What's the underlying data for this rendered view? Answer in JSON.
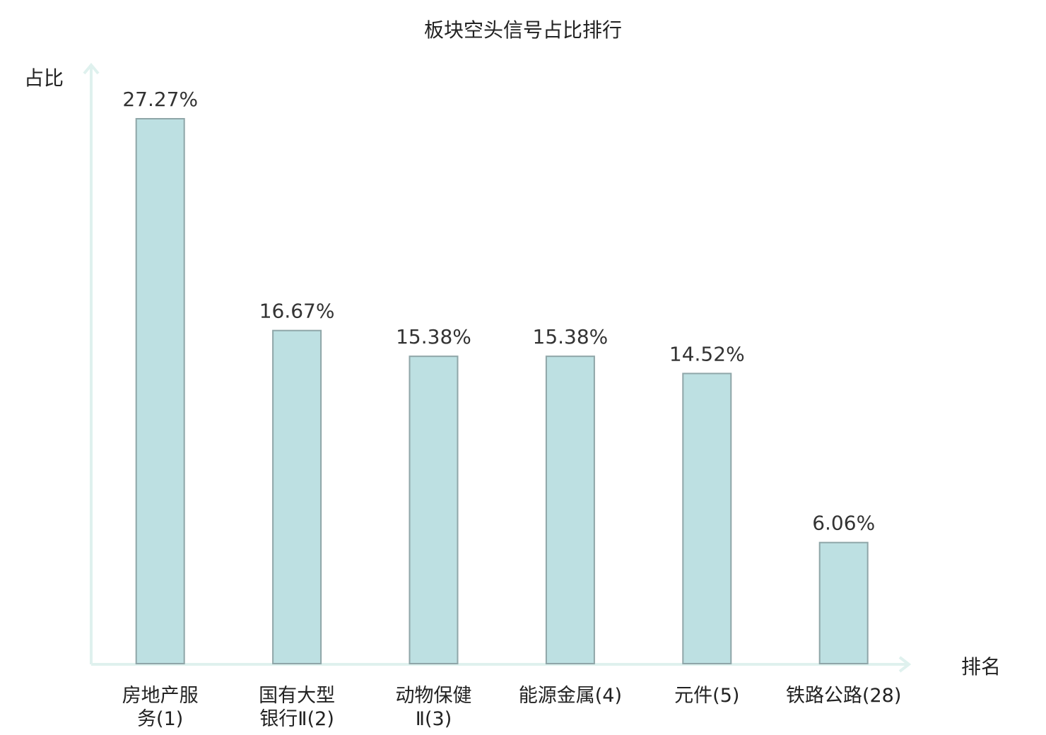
{
  "chart_data": {
    "type": "bar",
    "title": "板块空头信号占比排行",
    "ylabel": "占比",
    "xlabel": "排名",
    "categories": [
      [
        "房地产服",
        "务(1)"
      ],
      [
        "国有大型",
        "银行Ⅱ(2)"
      ],
      [
        "动物保健",
        "Ⅱ(3)"
      ],
      [
        "能源金属(4)"
      ],
      [
        "元件(5)"
      ],
      [
        "铁路公路(28)"
      ]
    ],
    "values": [
      27.27,
      16.67,
      15.38,
      15.38,
      14.52,
      6.06
    ],
    "value_labels": [
      "27.27%",
      "16.67%",
      "15.38%",
      "15.38%",
      "14.52%",
      "6.06%"
    ],
    "ylim": [
      0,
      27.27
    ],
    "grid": false,
    "highlight_index": 5
  },
  "colors": {
    "bar_fill": "#bde0e2",
    "bar_stroke": "#8fa6a8",
    "axis": "#dff1ee",
    "highlight_text": "#e41a1c",
    "text": "#222222"
  }
}
